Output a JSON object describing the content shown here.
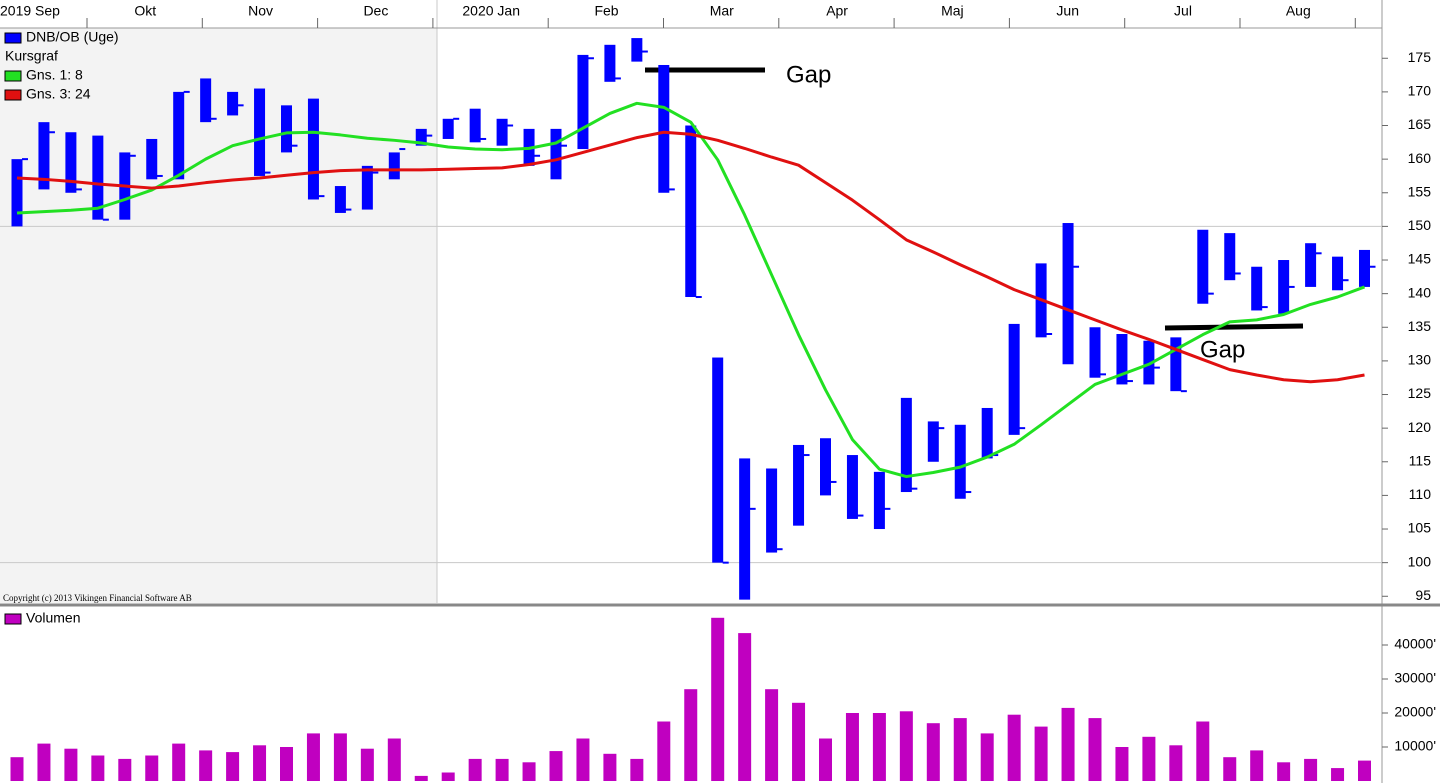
{
  "chart_data": [
    {
      "type": "ohlc",
      "x_labels": [
        "2019 Sep",
        "Okt",
        "Nov",
        "Dec",
        "2020 Jan",
        "Feb",
        "Mar",
        "Apr",
        "Maj",
        "Jun",
        "Jul",
        "Aug"
      ],
      "legend_heading": "Kursgraf",
      "copyright": "Copyright (c) 2013 Vikingen Financial Software AB",
      "annotations": [
        {
          "text": "Gap"
        },
        {
          "text": "Gap"
        }
      ],
      "ylim": [
        94,
        179.5
      ],
      "yticks": [
        95,
        100,
        105,
        110,
        115,
        120,
        125,
        130,
        135,
        140,
        145,
        150,
        155,
        160,
        165,
        170,
        175
      ],
      "ygrid": [
        100,
        150
      ],
      "series": [
        {
          "name": "DNB/OB (Uge)",
          "color": "#0000ff",
          "high": [
            160,
            165.5,
            164,
            163.5,
            161,
            163,
            170,
            172,
            170,
            170.5,
            168,
            169,
            156,
            159,
            161,
            164.5,
            166,
            167.5,
            166,
            164.5,
            164.5,
            175.5,
            177,
            178,
            174,
            165,
            130.5,
            115.5,
            114,
            117.5,
            118.5,
            116,
            113.5,
            124.5,
            121,
            120.5,
            123,
            135.5,
            144.5,
            150.5,
            135,
            134,
            133,
            133.5,
            149.5,
            149,
            144,
            145,
            147.5,
            145.5,
            146.5
          ],
          "low": [
            150,
            155.5,
            155,
            151,
            151,
            157,
            157,
            165.5,
            166.5,
            157.5,
            161,
            154,
            152,
            152.5,
            157,
            162,
            163,
            162.5,
            162,
            159,
            157,
            161.5,
            171.5,
            174.5,
            155,
            139.5,
            100,
            94.5,
            101.5,
            105.5,
            110,
            106.5,
            105,
            110.5,
            115,
            109.5,
            115.5,
            119,
            133.5,
            129.5,
            127.5,
            126.5,
            126.5,
            125.5,
            138.5,
            142,
            137.5,
            137,
            141,
            140.5,
            141
          ],
          "close": [
            160,
            164,
            155.5,
            151,
            160.5,
            157.5,
            170,
            166,
            168,
            158,
            162,
            154.5,
            152.5,
            158,
            161.5,
            163.5,
            166,
            163,
            165,
            160.5,
            162,
            175,
            172,
            176,
            155.5,
            139.5,
            100,
            108,
            102,
            116,
            112,
            107,
            108,
            111,
            120,
            110.5,
            116,
            120,
            134,
            144,
            128,
            127,
            129,
            125.5,
            140,
            143,
            138,
            141,
            146,
            142,
            144
          ]
        },
        {
          "name": "Gns. 1: 8",
          "color": "#22e022",
          "values": [
            152,
            152.2,
            152.4,
            152.7,
            154,
            155.4,
            157.6,
            160,
            162,
            163,
            163.9,
            164,
            163.6,
            163.1,
            162.8,
            162.4,
            161.8,
            161.5,
            161.4,
            161.6,
            162.4,
            164.6,
            166.8,
            168.3,
            167.7,
            165.5,
            159.9,
            151.7,
            142.8,
            133.9,
            125.7,
            118.3,
            113.9,
            112.8,
            113.4,
            114.2,
            115.7,
            117.6,
            120.5,
            123.5,
            126.5,
            128,
            129.5,
            131.7,
            133.9,
            135.8,
            136.1,
            136.9,
            138.4,
            139.5,
            141
          ]
        },
        {
          "name": "Gns. 3: 24",
          "color": "#e01010",
          "values": [
            157.2,
            157,
            156.7,
            156.3,
            156,
            155.7,
            156,
            156.5,
            156.9,
            157.2,
            157.6,
            158,
            158.3,
            158.4,
            158.4,
            158.4,
            158.5,
            158.6,
            158.7,
            159.2,
            159.9,
            161,
            162.1,
            163.2,
            164,
            163.7,
            162.8,
            161.6,
            160.3,
            159.1,
            156.5,
            153.9,
            151,
            148,
            146.2,
            144.3,
            142.5,
            140.6,
            139.1,
            137.6,
            136.1,
            134.6,
            133.2,
            131.7,
            130.2,
            128.7,
            127.9,
            127.2,
            126.9,
            127.2,
            127.9
          ]
        }
      ]
    },
    {
      "type": "bar",
      "ylim": [
        0,
        50000
      ],
      "yticks": [
        {
          "value": 10000,
          "label": "10000'"
        },
        {
          "value": 20000,
          "label": "20000'"
        },
        {
          "value": 30000,
          "label": "30000'"
        },
        {
          "value": 40000,
          "label": "40000'"
        }
      ],
      "series": [
        {
          "name": "Volumen",
          "color": "#c000c0",
          "values": [
            7000,
            11000,
            9500,
            7500,
            6500,
            7500,
            11000,
            9000,
            8500,
            10500,
            10000,
            14000,
            14000,
            9500,
            12500,
            1500,
            2500,
            6500,
            6500,
            5500,
            8800,
            12500,
            8000,
            6500,
            17500,
            27000,
            48000,
            43500,
            27000,
            23000,
            12500,
            20000,
            20000,
            20500,
            17000,
            18500,
            14000,
            19500,
            16000,
            21500,
            18500,
            10000,
            13000,
            10500,
            17500,
            7000,
            9000,
            5500,
            6500,
            3800,
            6000
          ]
        }
      ]
    }
  ]
}
